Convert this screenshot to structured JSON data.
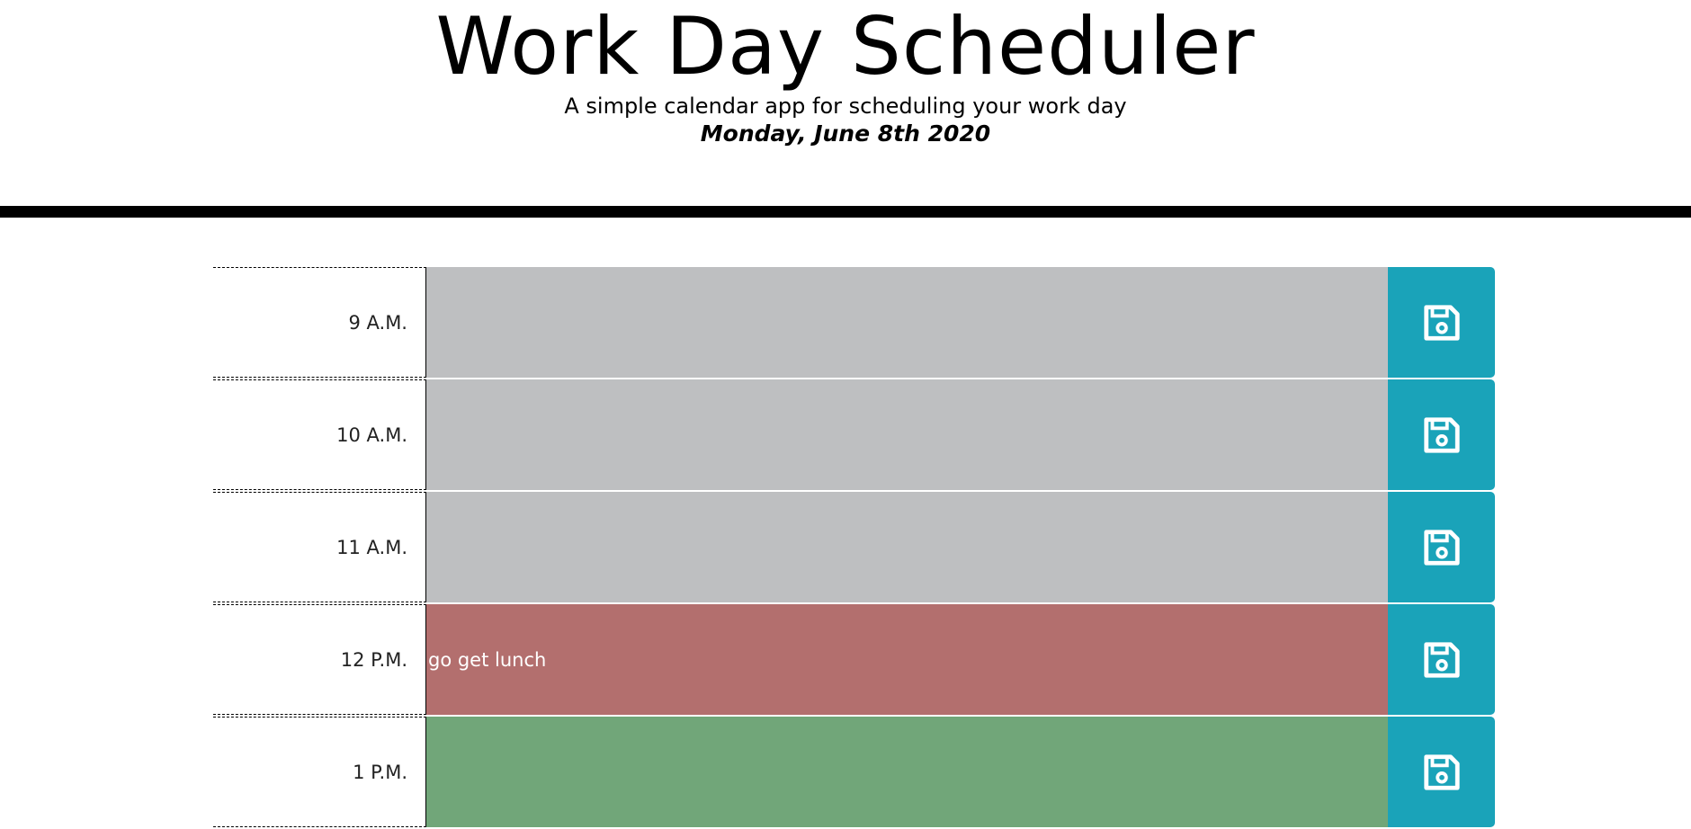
{
  "header": {
    "title": "Work Day Scheduler",
    "subtitle": "A simple calendar app for scheduling your work day",
    "current_day": "Monday, June 8th 2020"
  },
  "colors": {
    "past": "#bebfc1",
    "present": "#b36f6e",
    "future": "#71a679",
    "save_button": "#1aa3b9"
  },
  "rows": [
    {
      "hour": "9 A.M.",
      "text": "",
      "state": "past",
      "save_icon": "save-icon"
    },
    {
      "hour": "10 A.M.",
      "text": "",
      "state": "past",
      "save_icon": "save-icon"
    },
    {
      "hour": "11 A.M.",
      "text": "",
      "state": "past",
      "save_icon": "save-icon"
    },
    {
      "hour": "12 P.M.",
      "text": "go get lunch",
      "state": "present",
      "save_icon": "save-icon"
    },
    {
      "hour": "1 P.M.",
      "text": "",
      "state": "future",
      "save_icon": "save-icon"
    }
  ]
}
